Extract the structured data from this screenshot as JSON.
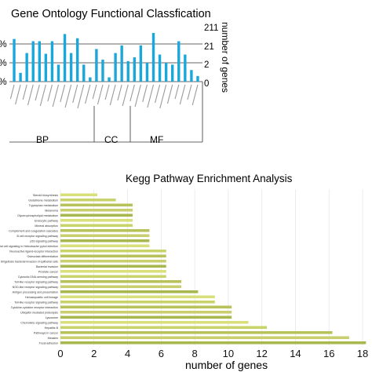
{
  "go_chart": {
    "title": "Gene Ontology Functional Classfication",
    "left_axis_ticks": [
      "%",
      "%",
      "%"
    ],
    "right_axis_ticks": [
      "211",
      "21",
      "2",
      "0"
    ],
    "right_axis_label": "number of genes",
    "groups": [
      {
        "label": "BP",
        "start": 0,
        "end": 16
      },
      {
        "label": "CC",
        "start": 16,
        "end": 21
      },
      {
        "label": "MF",
        "start": 21,
        "end": 30
      }
    ],
    "bar_color": "#1aa7dc"
  },
  "kegg_chart": {
    "title": "Kegg Pathway Enrichment Analysis",
    "xlabel": "number of genes",
    "xticks": [
      "0",
      "2",
      "4",
      "6",
      "8",
      "10",
      "12",
      "14",
      "16",
      "18"
    ]
  },
  "chart_data": [
    {
      "type": "bar",
      "title": "Gene Ontology Functional Classfication",
      "ylabel_right": "number of genes",
      "yscale": "log",
      "ylim": [
        0,
        211
      ],
      "right_ticks": [
        211,
        21,
        2,
        0
      ],
      "categories_readable": false,
      "values": [
        56,
        1.3,
        14,
        45,
        45,
        13,
        45,
        4,
        90,
        14,
        60,
        4,
        0.5,
        21,
        7,
        0.5,
        14,
        30,
        6,
        9,
        30,
        5,
        100,
        12,
        5,
        4,
        45,
        12,
        2,
        0.7
      ],
      "groups": [
        "BP",
        "CC",
        "MF"
      ]
    },
    {
      "type": "bar",
      "orientation": "horizontal",
      "title": "Kegg Pathway Enrichment Analysis",
      "xlabel": "number of genes",
      "xlim": [
        0,
        18
      ],
      "categories": [
        "Steroid biosynthesis",
        "Glutathione metabolism",
        "Tryptophan metabolism",
        "Melanoma",
        "Glycerophospholipid metabolism",
        "Endocytic pathway",
        "Mineral absorption",
        "Complement and coagulation cascades",
        "B cell receptor signaling pathway",
        "p53 signaling pathway",
        "Epithelial cell signaling in Helicobacter pylori infection",
        "Neuroactive ligand-receptor interaction",
        "Osteoclast differentiation",
        "Shigellosis bacterial invasion of epithelial cells",
        "Bacterial invasion",
        "Prostate cancer",
        "Cytosolic DNA-sensing pathway",
        "Toll-like receptor signaling pathway",
        "NOD-like receptor signaling pathway",
        "Antigen processing and presentation",
        "Hematopoietic cell lineage",
        "Toll-like receptor signaling pathway",
        "Cytokine-cytokine receptor interaction",
        "Ubiquitin mediated proteolysis",
        "Lysosome",
        "Chemokine signaling pathway",
        "Hepatitis B",
        "Pathways in cancer",
        "Measles",
        "Focal adhesion"
      ],
      "values": [
        2.2,
        3.3,
        4.3,
        4.3,
        4.3,
        4.3,
        4.3,
        5.3,
        5.3,
        5.3,
        5.3,
        6.3,
        6.3,
        6.3,
        6.3,
        6.3,
        6.3,
        7.2,
        7.2,
        8.2,
        9.2,
        9.2,
        10.2,
        10.2,
        10.2,
        11.2,
        12.3,
        16.2,
        17.2,
        18.2
      ]
    }
  ]
}
